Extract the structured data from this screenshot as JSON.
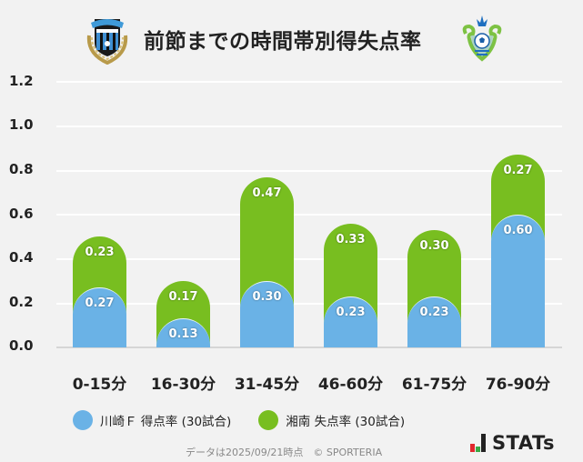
{
  "header": {
    "title": "前節までの時間帯別得失点率",
    "left_team_logo": "kawasaki-frontale-crest",
    "right_team_logo": "shonan-bellmare-crest"
  },
  "colors": {
    "background": "#f2f2f2",
    "kawasaki_blue": "#6ab2e6",
    "shonan_green": "#78be20",
    "gridline": "#ffffff",
    "baseline": "#d6d6d6"
  },
  "legend": {
    "items": [
      {
        "label": "川崎Ｆ 得点率 (30試合)",
        "color": "#6ab2e6"
      },
      {
        "label": "湘南 失点率 (30試合)",
        "color": "#78be20"
      }
    ]
  },
  "footer": {
    "note": "データは2025/09/21時点　© SPORTERIA",
    "brand": "STATs"
  },
  "chart_data": {
    "type": "bar",
    "stacked": true,
    "title": "前節までの時間帯別得失点率",
    "xlabel": "",
    "ylabel": "",
    "ylim": [
      0,
      1.2
    ],
    "yticks": [
      "0.0",
      "0.2",
      "0.4",
      "0.6",
      "0.8",
      "1.0",
      "1.2"
    ],
    "grid": true,
    "legend_position": "bottom",
    "categories": [
      "0-15分",
      "16-30分",
      "31-45分",
      "46-60分",
      "61-75分",
      "76-90分"
    ],
    "series": [
      {
        "name": "川崎Ｆ 得点率 (30試合)",
        "color": "#6ab2e6",
        "values": [
          0.27,
          0.13,
          0.3,
          0.23,
          0.23,
          0.6
        ],
        "labels": [
          "0.27",
          "0.13",
          "0.30",
          "0.23",
          "0.23",
          "0.60"
        ]
      },
      {
        "name": "湘南 失点率 (30試合)",
        "color": "#78be20",
        "values": [
          0.23,
          0.17,
          0.47,
          0.33,
          0.3,
          0.27
        ],
        "labels": [
          "0.23",
          "0.17",
          "0.47",
          "0.33",
          "0.30",
          "0.27"
        ]
      }
    ]
  }
}
